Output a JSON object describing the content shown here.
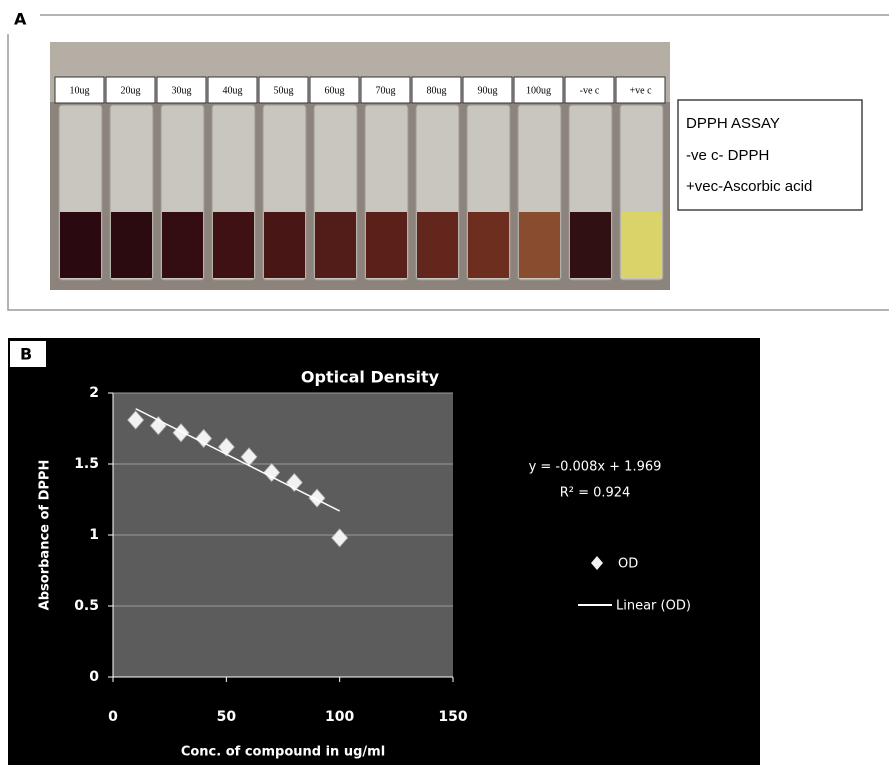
{
  "panel_a": {
    "label": "A",
    "vial_labels": [
      "10ug",
      "20ug",
      "30ug",
      "40ug",
      "50ug",
      "60ug",
      "70ug",
      "80ug",
      "90ug",
      "100ug",
      "-ve c",
      "+ve c"
    ],
    "legend": [
      "DPPH ASSAY",
      "-ve c- DPPH",
      "+vec-Ascorbic acid"
    ]
  },
  "panel_b": {
    "label": "B"
  },
  "chart_data": {
    "type": "scatter",
    "title": "Optical Density",
    "x_label": "Conc. of compound in ug/ml",
    "y_label": "Absorbance of DPPH",
    "series": [
      {
        "name": "OD",
        "color": "#f2f2f2",
        "x": [
          10,
          20,
          30,
          40,
          50,
          60,
          70,
          80,
          90,
          100
        ],
        "values": [
          1.81,
          1.77,
          1.72,
          1.68,
          1.62,
          1.55,
          1.44,
          1.37,
          1.26,
          0.98
        ]
      }
    ],
    "trendline": {
      "name": "Linear (OD)",
      "slope": -0.008,
      "intercept": 1.969,
      "color": "#ffffff",
      "equation": "y = -0.008x + 1.969",
      "r2_label": "R² = 0.924"
    },
    "xlim": [
      0,
      150
    ],
    "xticks": [
      0,
      50,
      100,
      150
    ],
    "ylim": [
      0,
      2
    ],
    "yticks": [
      0,
      0.5,
      1,
      1.5,
      2
    ],
    "grid": true
  }
}
